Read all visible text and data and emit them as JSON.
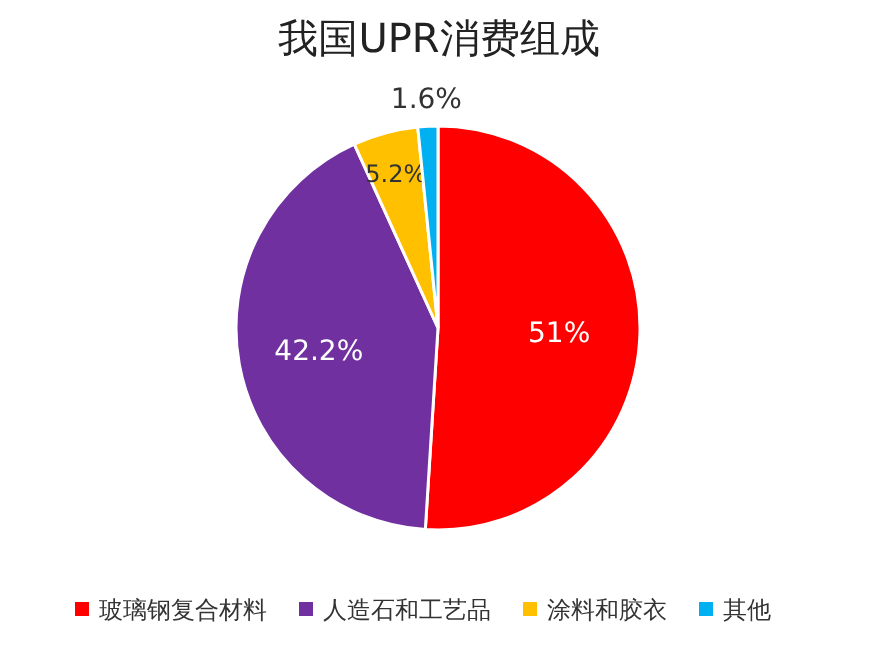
{
  "chart_data": {
    "type": "pie",
    "title": "我国UPR消费组成",
    "categories": [
      "玻璃钢复合材料",
      "人造石和工艺品",
      "涂料和胶衣",
      "其他"
    ],
    "values": [
      51,
      42.2,
      5.2,
      1.6
    ],
    "value_labels": [
      "51%",
      "42.2%",
      "5.2%",
      "1.6%"
    ],
    "colors": [
      "#ff0000",
      "#7030a0",
      "#ffc000",
      "#00b0f0"
    ],
    "legend": "bottom"
  }
}
